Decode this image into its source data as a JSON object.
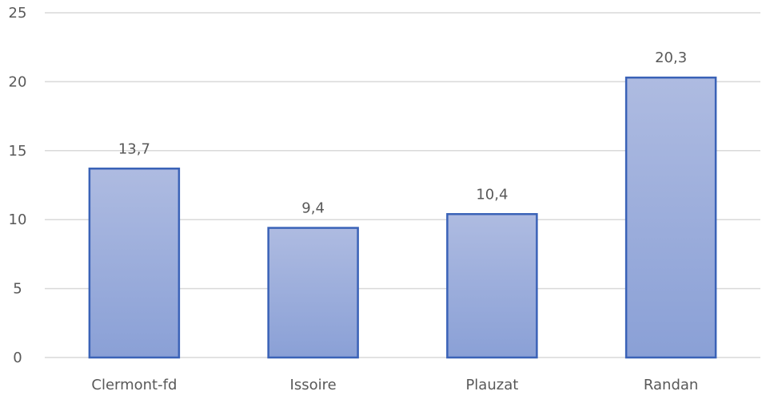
{
  "chart_data": {
    "type": "bar",
    "categories": [
      "Clermont-fd",
      "Issoire",
      "Plauzat",
      "Randan"
    ],
    "values": [
      13.7,
      9.4,
      10.4,
      20.3
    ],
    "data_labels": [
      "13,7",
      "9,4",
      "10,4",
      "20,3"
    ],
    "y_ticks": [
      0,
      5,
      10,
      15,
      20,
      25
    ],
    "ylim": [
      0,
      25
    ],
    "grid": true,
    "colors": {
      "bar_top": "#aebbe1",
      "bar_bottom": "#8aa0d6",
      "bar_border": "#3a62b7",
      "gridline": "#d9d9d9",
      "text": "#595959"
    }
  }
}
